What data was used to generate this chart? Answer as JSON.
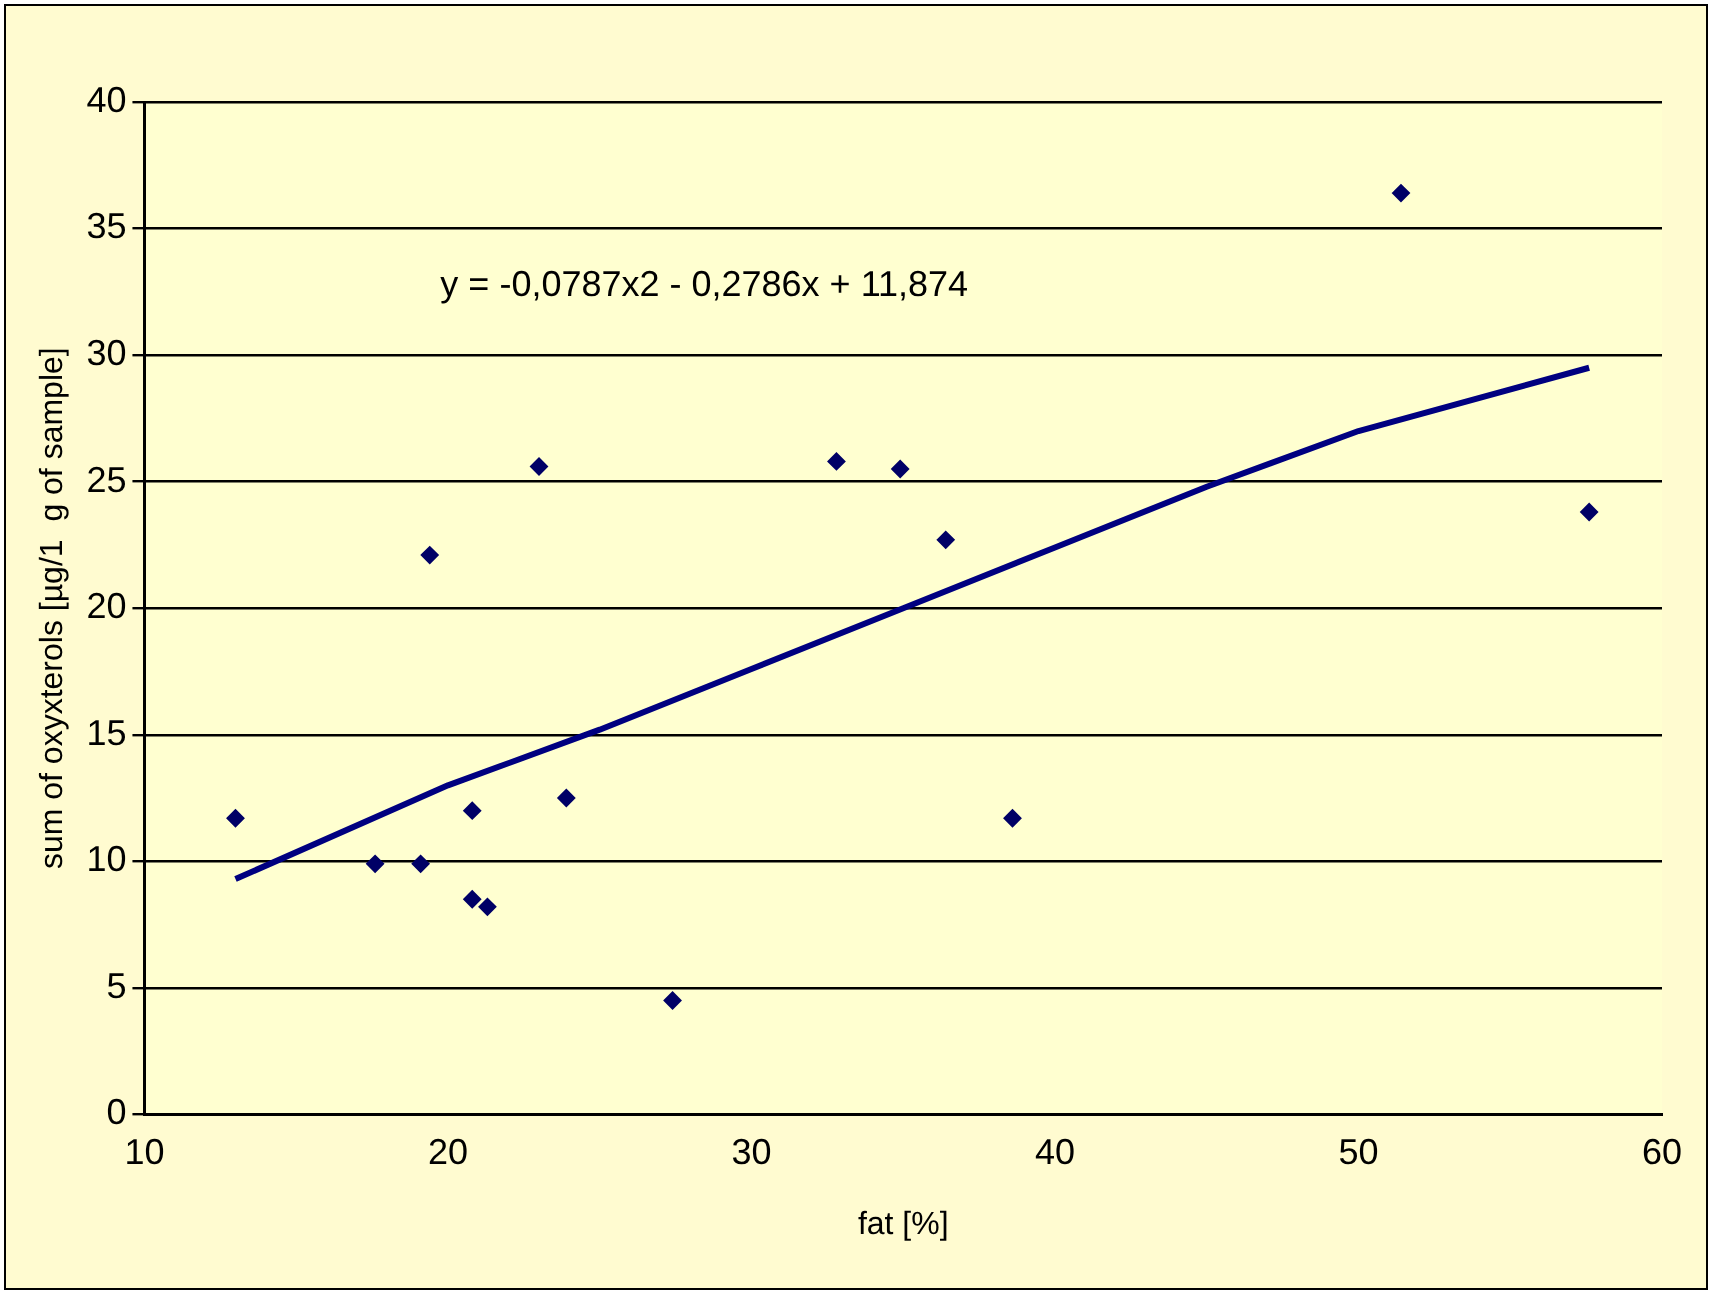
{
  "chart_data": {
    "type": "scatter",
    "xlabel": "fat [%]",
    "ylabel": "sum of oxyxterols [µg/1  g of sample]",
    "annotations": [
      "y = -0,0787x2 - 0,2786x + 11,874"
    ],
    "xlim": [
      10,
      60
    ],
    "xticks": [
      10,
      20,
      30,
      40,
      50,
      60
    ],
    "ylim": [
      0,
      40
    ],
    "yticks": [
      0,
      5,
      10,
      15,
      20,
      25,
      30,
      35,
      40
    ],
    "grid": "y",
    "legend": false,
    "marker": "diamond",
    "series": [
      {
        "color": "#000066",
        "x": [
          13.0,
          17.6,
          19.1,
          19.4,
          20.8,
          20.8,
          21.3,
          23.0,
          23.9,
          27.4,
          32.8,
          34.9,
          36.4,
          38.6,
          51.4,
          57.6
        ],
        "values": [
          11.7,
          9.9,
          9.9,
          22.1,
          12.0,
          8.5,
          8.2,
          25.6,
          12.5,
          4.5,
          25.8,
          25.5,
          22.7,
          11.7,
          36.4,
          23.8
        ]
      },
      {
        "type": "line",
        "color": "#000080",
        "marker": "none",
        "x": [
          13,
          20,
          25,
          30,
          35,
          40,
          45,
          50,
          57.6
        ],
        "values": [
          9.3,
          13.0,
          15.2,
          17.6,
          20.0,
          22.4,
          24.8,
          27.0,
          29.5
        ]
      }
    ]
  }
}
